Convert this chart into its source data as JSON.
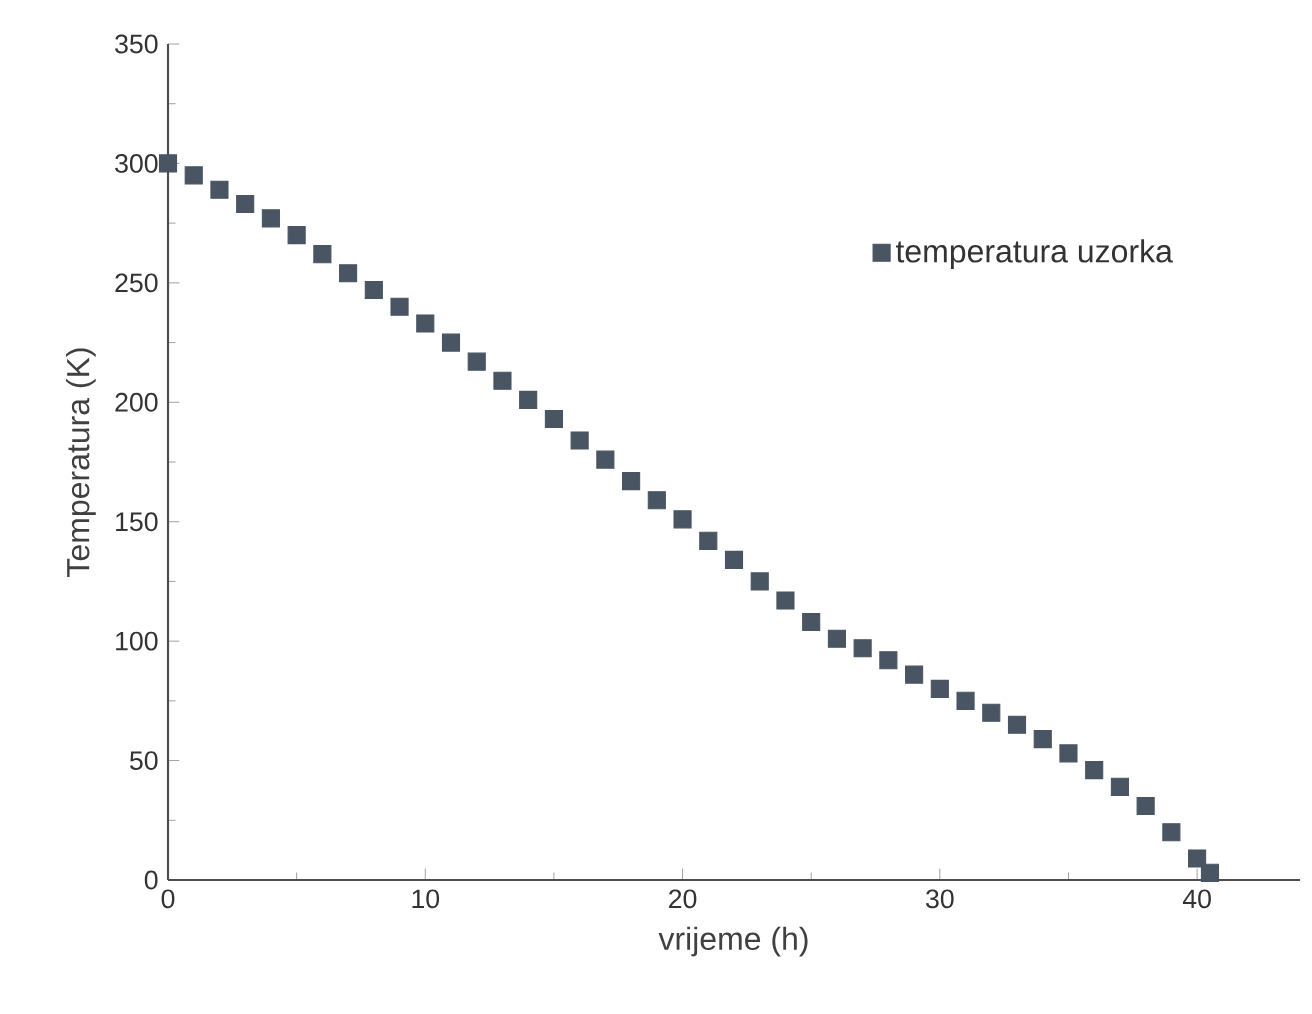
{
  "chart_data": {
    "type": "scatter",
    "xlabel": "vrijeme (h)",
    "ylabel": "Temperatura (K)",
    "x": [
      0,
      1,
      2,
      3,
      4,
      5,
      6,
      7,
      8,
      9,
      10,
      11,
      12,
      13,
      14,
      15,
      16,
      17,
      18,
      19,
      20,
      21,
      22,
      23,
      24,
      25,
      26,
      27,
      28,
      29,
      30,
      31,
      32,
      33,
      34,
      35,
      36,
      37,
      38,
      39,
      40,
      40.5
    ],
    "series": [
      {
        "name": "temperatura uzorka",
        "color": "#4a5563",
        "values": [
          300,
          295,
          289,
          283,
          277,
          270,
          262,
          254,
          247,
          240,
          233,
          225,
          217,
          209,
          201,
          193,
          184,
          176,
          167,
          159,
          151,
          142,
          134,
          125,
          117,
          108,
          101,
          97,
          92,
          86,
          80,
          75,
          70,
          65,
          59,
          53,
          46,
          39,
          31,
          20,
          9,
          3
        ]
      }
    ],
    "xlim": [
      0,
      44
    ],
    "ylim": [
      0,
      350
    ],
    "xticks": [
      0,
      10,
      20,
      30,
      40
    ],
    "yticks": [
      0,
      50,
      100,
      150,
      200,
      250,
      300,
      350
    ],
    "marker": "square",
    "legend": "top right",
    "grid": false
  }
}
